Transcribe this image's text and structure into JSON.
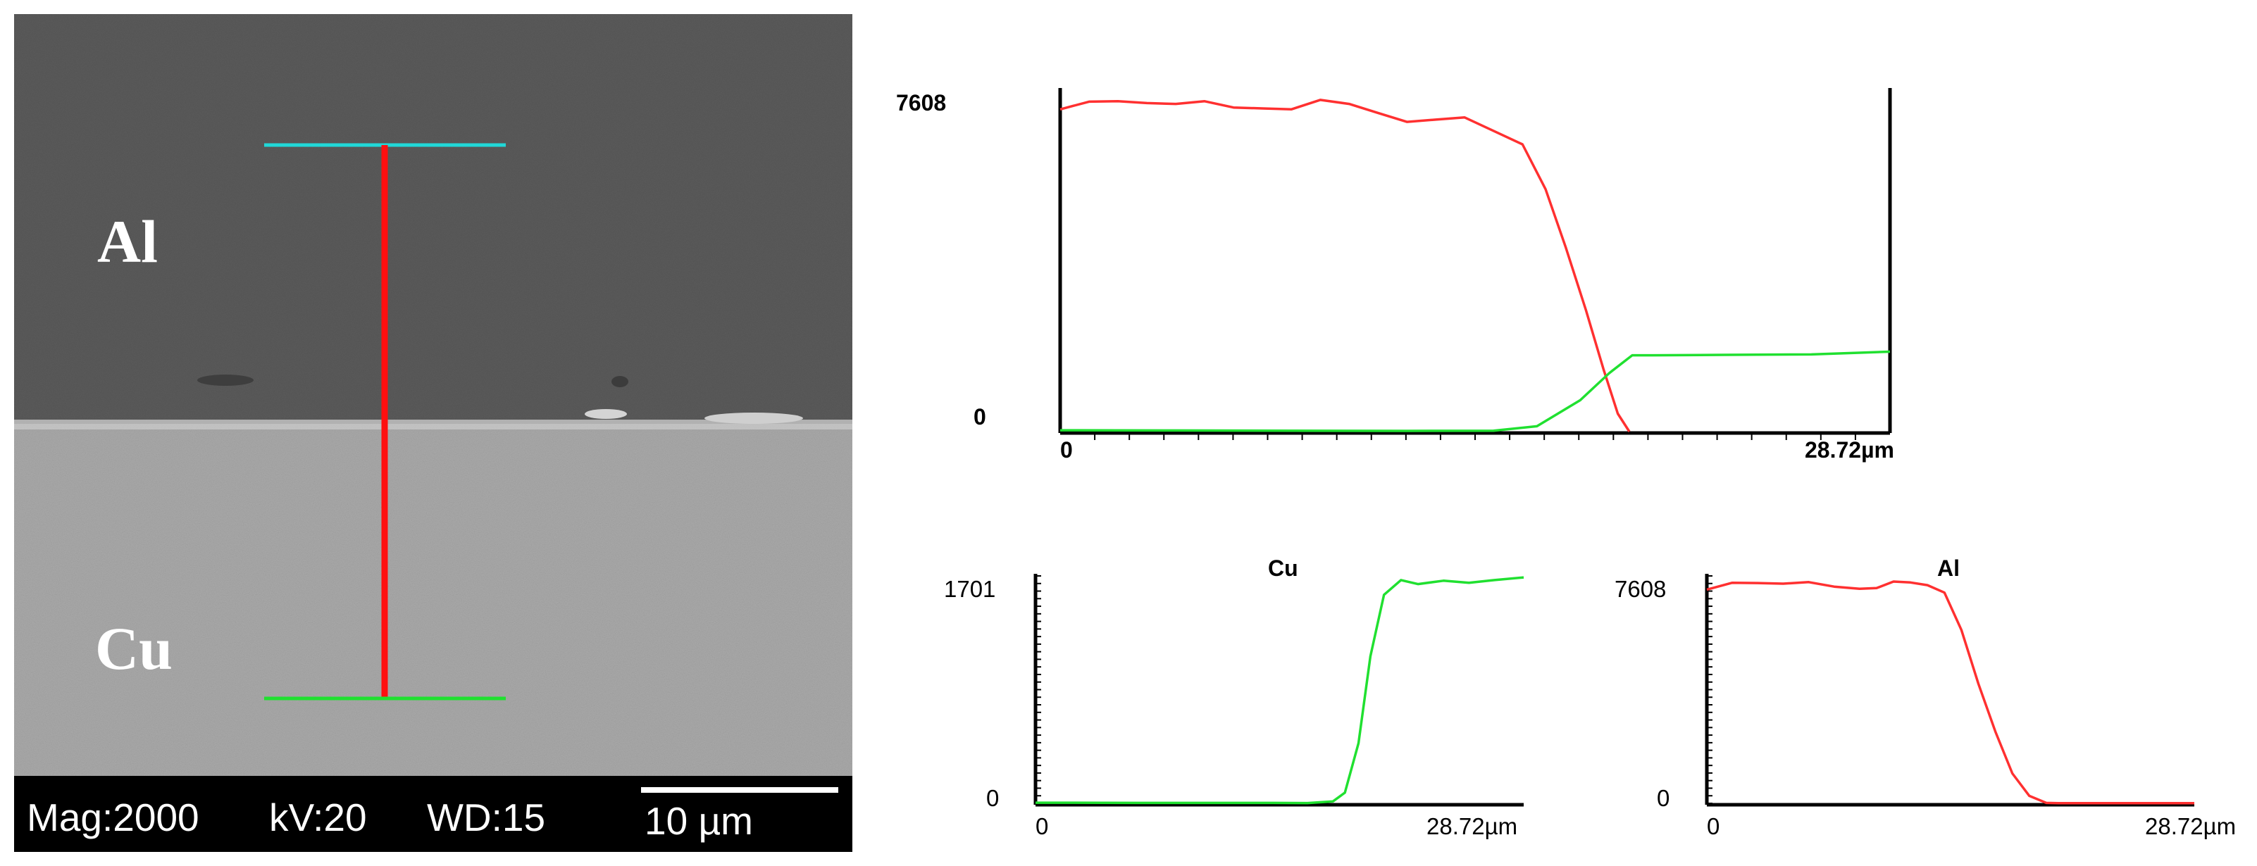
{
  "sem": {
    "label_top": "Al",
    "label_bottom": "Cu",
    "mag": "Mag:2000",
    "kv": "kV:20",
    "wd": "WD:15",
    "scale": "10 µm",
    "colors": {
      "line": "#ff1010",
      "top_marker": "#20d8d8",
      "bottom_marker": "#20e030"
    }
  },
  "chart_data": [
    {
      "type": "line",
      "x_range": [
        0,
        28.72
      ],
      "ylim": [
        0,
        7608
      ],
      "y_tick_labels": [
        "7608",
        "0"
      ],
      "x_tick_labels": [
        "0",
        "28.72µm"
      ],
      "title": "",
      "series": [
        {
          "color": "#ff3030",
          "x": [
            0,
            1.0,
            2.0,
            3.0,
            4.0,
            5.0,
            6.0,
            7.0,
            8.0,
            9.0,
            10.0,
            11.0,
            12.0,
            13.0,
            14.0,
            15.0,
            16.0,
            16.8,
            17.5,
            18.2,
            18.8,
            19.3,
            19.7
          ],
          "y": [
            7180,
            7350,
            7360,
            7320,
            7300,
            7360,
            7220,
            7200,
            7180,
            7390,
            7300,
            7100,
            6900,
            6950,
            7000,
            6700,
            6400,
            5400,
            4100,
            2700,
            1400,
            400,
            0
          ]
        },
        {
          "color": "#20e030",
          "x": [
            0,
            4.0,
            8.0,
            12.0,
            15.0,
            16.5,
            18.0,
            19.0,
            19.8,
            20.5,
            23.0,
            26.0,
            28.72
          ],
          "y": [
            30,
            25,
            20,
            15,
            20,
            120,
            700,
            1300,
            1700,
            1700,
            1710,
            1720,
            1780
          ]
        }
      ]
    },
    {
      "type": "line",
      "title": "Cu",
      "x_range": [
        0,
        28.72
      ],
      "ylim": [
        0,
        1701
      ],
      "y_tick_labels": [
        "1701",
        "0"
      ],
      "x_tick_labels": [
        "0",
        "28.72µm"
      ],
      "series": [
        {
          "color": "#20e030",
          "x": [
            0,
            2.0,
            4.0,
            6.0,
            8.0,
            10.0,
            12.0,
            14.0,
            16.0,
            17.5,
            18.2,
            19.0,
            19.7,
            20.5,
            21.5,
            22.5,
            24.0,
            25.5,
            27.0,
            28.72
          ],
          "y": [
            5,
            5,
            4,
            3,
            3,
            3,
            3,
            3,
            2,
            15,
            80,
            450,
            1100,
            1560,
            1670,
            1640,
            1665,
            1650,
            1670,
            1690
          ]
        }
      ]
    },
    {
      "type": "line",
      "title": "Al",
      "x_range": [
        0,
        28.72
      ],
      "ylim": [
        0,
        7608
      ],
      "y_tick_labels": [
        "7608",
        "0"
      ],
      "x_tick_labels": [
        "0",
        "28.72µm"
      ],
      "series": [
        {
          "color": "#ff3030",
          "x": [
            0,
            1.5,
            3.0,
            4.5,
            6.0,
            7.5,
            9.0,
            10.0,
            11.0,
            12.0,
            13.0,
            14.0,
            15.0,
            16.0,
            17.0,
            18.0,
            19.0,
            20.0,
            20.8,
            21.5,
            22.5,
            25.0,
            28.72
          ],
          "y": [
            7150,
            7380,
            7370,
            7350,
            7400,
            7250,
            7180,
            7200,
            7420,
            7390,
            7300,
            7050,
            5800,
            4000,
            2400,
            1000,
            250,
            15,
            5,
            5,
            5,
            5,
            5
          ]
        }
      ]
    }
  ]
}
